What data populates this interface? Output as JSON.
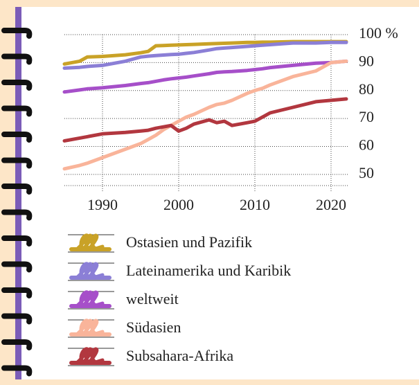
{
  "chart_data": {
    "type": "line",
    "x": [
      1985,
      1987,
      1988,
      1990,
      1993,
      1995,
      1996,
      1997,
      1998,
      1999,
      2000,
      2001,
      2002,
      2004,
      2005,
      2006,
      2007,
      2009,
      2010,
      2011,
      2012,
      2015,
      2018,
      2020,
      2022
    ],
    "series": [
      {
        "name": "Ostasien und Pazifik",
        "color": "#c9a227",
        "values": [
          89.5,
          90.5,
          92,
          92.2,
          92.8,
          93.5,
          94,
          96,
          96.1,
          96.2,
          96.3,
          96.4,
          96.5,
          96.7,
          96.8,
          96.9,
          97,
          97.2,
          97.2,
          97.3,
          97.3,
          97.5,
          97.5,
          97.5,
          97.5
        ]
      },
      {
        "name": "Lateinamerika und Karibik",
        "color": "#8b7fd6",
        "values": [
          88,
          88.3,
          88.6,
          89,
          90.5,
          92,
          92.3,
          92.5,
          92.7,
          92.9,
          93,
          93.3,
          93.6,
          94.5,
          95,
          95.2,
          95.4,
          95.8,
          96,
          96.2,
          96.4,
          97,
          97,
          97.2,
          97.2
        ]
      },
      {
        "name": "weltweit",
        "color": "#a64fc9",
        "values": [
          79.5,
          80.2,
          80.6,
          81,
          81.8,
          82.5,
          82.8,
          83.3,
          83.8,
          84.2,
          84.5,
          84.8,
          85.2,
          86,
          86.5,
          86.7,
          86.8,
          87.2,
          87.5,
          87.8,
          88.2,
          89,
          89.8,
          90,
          90.5
        ]
      },
      {
        "name": "Südasien",
        "color": "#f9b49a",
        "values": [
          52,
          53.2,
          54,
          56,
          59,
          61,
          62.5,
          64,
          66,
          67.5,
          69,
          70.5,
          71.5,
          74,
          75,
          75.5,
          76.5,
          79,
          80,
          80.8,
          82,
          85,
          87,
          90,
          90.5
        ]
      },
      {
        "name": "Subsahara-Afrika",
        "color": "#b2373f",
        "values": [
          62,
          63,
          63.5,
          64.5,
          65,
          65.5,
          65.8,
          66.5,
          67,
          67.5,
          65.5,
          66.5,
          68,
          69.5,
          68.5,
          69,
          67.5,
          68.5,
          69,
          70.5,
          72,
          74,
          76,
          76.5,
          77
        ]
      }
    ],
    "xlim": [
      1985,
      2022
    ],
    "xticks": [
      1990,
      2000,
      2010,
      2020
    ],
    "ylim": [
      46,
      100
    ],
    "yticks": [
      {
        "value": 100,
        "label": "100 %"
      },
      90,
      80,
      70,
      60,
      50
    ],
    "grid": true
  }
}
